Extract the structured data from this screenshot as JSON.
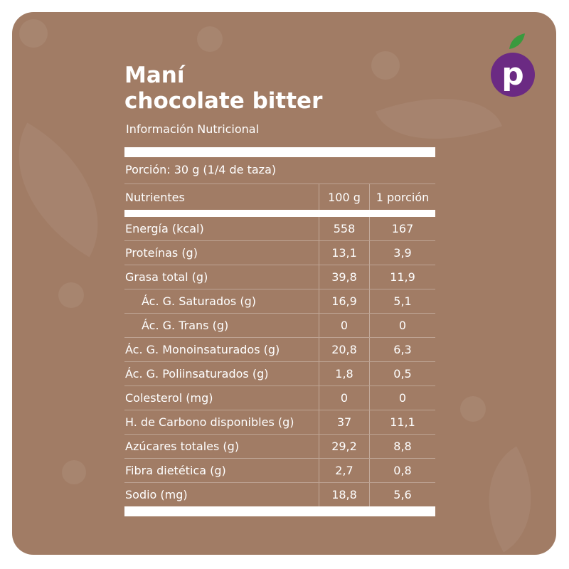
{
  "title_line1": "Maní",
  "title_line2": "chocolate bitter",
  "subtitle": "Información Nutricional",
  "portion": "Porción: 30 g (1/4 de taza)",
  "logo": {
    "letter": "p",
    "circle_color": "#6b2a83",
    "leaf_color": "#3a9a3e"
  },
  "background_color": "#a17c65",
  "table": {
    "headers": [
      "Nutrientes",
      "100 g",
      "1 porción"
    ],
    "rows": [
      {
        "name": "Energía (kcal)",
        "per100": "558",
        "portion": "167",
        "indent": false
      },
      {
        "name": "Proteínas (g)",
        "per100": "13,1",
        "portion": "3,9",
        "indent": false
      },
      {
        "name": "Grasa total (g)",
        "per100": "39,8",
        "portion": "11,9",
        "indent": false
      },
      {
        "name": "Ác. G. Saturados (g)",
        "per100": "16,9",
        "portion": "5,1",
        "indent": true
      },
      {
        "name": "Ác. G. Trans (g)",
        "per100": "0",
        "portion": "0",
        "indent": true
      },
      {
        "name": "Ác. G. Monoinsaturados (g)",
        "per100": "20,8",
        "portion": "6,3",
        "indent": false
      },
      {
        "name": "Ác. G. Poliinsaturados (g)",
        "per100": "1,8",
        "portion": "0,5",
        "indent": false
      },
      {
        "name": "Colesterol (mg)",
        "per100": "0",
        "portion": "0",
        "indent": false
      },
      {
        "name": "H. de Carbono disponibles (g)",
        "per100": "37",
        "portion": "11,1",
        "indent": false
      },
      {
        "name": "Azúcares totales (g)",
        "per100": "29,2",
        "portion": "8,8",
        "indent": false
      },
      {
        "name": "Fibra dietética (g)",
        "per100": "2,7",
        "portion": "0,8",
        "indent": false
      },
      {
        "name": "Sodio (mg)",
        "per100": "18,8",
        "portion": "5,6",
        "indent": false
      }
    ]
  }
}
